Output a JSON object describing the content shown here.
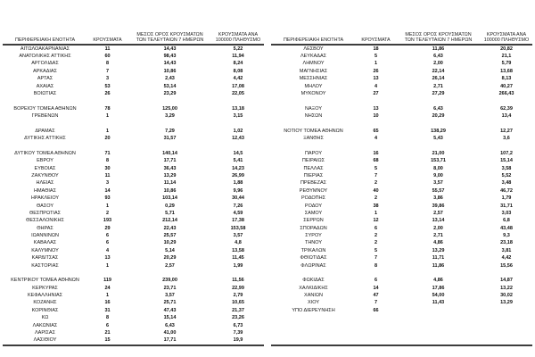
{
  "header": {
    "col_region": "ΠΕΡΙΦΕΡΕΙΑΚΗ ΕΝΟΤΗΤΑ",
    "col_cases": "ΚΡΟΥΣΜΑΤΑ",
    "col_avg7": "ΜΕΣΟΣ ΟΡΟΣ ΚΡΟΥΣΜΑΤΩΝ ΤΩΝ ΤΕΛΕΥΤΑΙΩΝ 7 ΗΜΕΡΩΝ",
    "col_per100k": "ΚΡΟΥΣΜΑΤΑ ΑΝΑ 100000 ΠΛΗΘΥΣΜΟ"
  },
  "left_table": {
    "rows": [
      {
        "region": "ΑΙΤΩΛΟΑΚΑΡΝΑΝΙΑΣ",
        "cases": "11",
        "avg7": "14,43",
        "per100k": "5,22"
      },
      {
        "region": "ΑΝΑΤΟΛΙΚΗΣ ΑΤΤΙΚΗΣ",
        "cases": "60",
        "avg7": "98,43",
        "per100k": "11,94"
      },
      {
        "region": "ΑΡΓΟΛΙΔΑΣ",
        "cases": "8",
        "avg7": "14,43",
        "per100k": "8,24"
      },
      {
        "region": "ΑΡΚΑΔΙΑΣ",
        "cases": "7",
        "avg7": "10,86",
        "per100k": "8,08"
      },
      {
        "region": "ΑΡΤΑΣ",
        "cases": "3",
        "avg7": "2,43",
        "per100k": "4,42"
      },
      {
        "region": "ΑΧΑΪΑΣ",
        "cases": "53",
        "avg7": "53,14",
        "per100k": "17,08"
      },
      {
        "region": "ΒΟΙΩΤΙΑΣ",
        "cases": "26",
        "avg7": "23,29",
        "per100k": "22,05"
      },
      null,
      {
        "region": "ΒΟΡΕΙΟΥ ΤΟΜΕΑ ΑΘΗΝΩΝ",
        "cases": "78",
        "avg7": "125,00",
        "per100k": "13,18"
      },
      {
        "region": "ΓΡΕΒΕΝΩΝ",
        "cases": "1",
        "avg7": "3,29",
        "per100k": "3,15"
      },
      null,
      {
        "region": "ΔΡΑΜΑΣ",
        "cases": "1",
        "avg7": "7,29",
        "per100k": "1,02"
      },
      {
        "region": "ΔΥΤΙΚΗΣ ΑΤΤΙΚΗΣ",
        "cases": "20",
        "avg7": "31,57",
        "per100k": "12,43"
      },
      null,
      {
        "region": "ΔΥΤΙΚΟΥ ΤΟΜΕΑ ΑΘΗΝΩΝ",
        "cases": "71",
        "avg7": "140,14",
        "per100k": "14,5"
      },
      {
        "region": "ΕΒΡΟΥ",
        "cases": "8",
        "avg7": "17,71",
        "per100k": "5,41"
      },
      {
        "region": "ΕΥΒΟΙΑΣ",
        "cases": "30",
        "avg7": "36,43",
        "per100k": "14,23"
      },
      {
        "region": "ΖΑΚΥΝΘΟΥ",
        "cases": "11",
        "avg7": "13,29",
        "per100k": "26,99"
      },
      {
        "region": "ΗΛΕΙΑΣ",
        "cases": "3",
        "avg7": "11,14",
        "per100k": "1,88"
      },
      {
        "region": "ΗΜΑΘΙΑΣ",
        "cases": "14",
        "avg7": "10,86",
        "per100k": "9,96"
      },
      {
        "region": "ΗΡΑΚΛΕΙΟΥ",
        "cases": "93",
        "avg7": "103,14",
        "per100k": "30,44"
      },
      {
        "region": "ΘΑΣΟΥ",
        "cases": "1",
        "avg7": "0,29",
        "per100k": "7,26"
      },
      {
        "region": "ΘΕΣΠΡΩΤΙΑΣ",
        "cases": "2",
        "avg7": "5,71",
        "per100k": "4,59"
      },
      {
        "region": "ΘΕΣΣΑΛΟΝΙΚΗΣ",
        "cases": "193",
        "avg7": "212,14",
        "per100k": "17,38"
      },
      {
        "region": "ΘΗΡΑΣ",
        "cases": "29",
        "avg7": "22,43",
        "per100k": "153,58"
      },
      {
        "region": "ΙΩΑΝΝΙΝΩΝ",
        "cases": "6",
        "avg7": "25,57",
        "per100k": "3,57"
      },
      {
        "region": "ΚΑΒΑΛΑΣ",
        "cases": "6",
        "avg7": "10,29",
        "per100k": "4,8"
      },
      {
        "region": "ΚΑΛΥΜΝΟΥ",
        "cases": "4",
        "avg7": "5,14",
        "per100k": "13,58"
      },
      {
        "region": "ΚΑΡΔΙΤΣΑΣ",
        "cases": "13",
        "avg7": "20,29",
        "per100k": "11,45"
      },
      {
        "region": "ΚΑΣΤΟΡΙΑΣ",
        "cases": "1",
        "avg7": "2,57",
        "per100k": "1,99"
      },
      null,
      {
        "region": "ΚΕΝΤΡΙΚΟΥ ΤΟΜΕΑ ΑΘΗΝΩΝ",
        "cases": "119",
        "avg7": "239,00",
        "per100k": "11,56"
      },
      {
        "region": "ΚΕΡΚΥΡΑΣ",
        "cases": "24",
        "avg7": "23,71",
        "per100k": "22,99"
      },
      {
        "region": "ΚΕΦΑΛΛΗΝΙΑΣ",
        "cases": "1",
        "avg7": "3,57",
        "per100k": "2,79"
      },
      {
        "region": "ΚΟΖΑΝΗΣ",
        "cases": "16",
        "avg7": "25,71",
        "per100k": "10,65"
      },
      {
        "region": "ΚΟΡΙΝΘΙΑΣ",
        "cases": "31",
        "avg7": "47,43",
        "per100k": "21,37"
      },
      {
        "region": "ΚΩ",
        "cases": "8",
        "avg7": "15,14",
        "per100k": "23,26"
      },
      {
        "region": "ΛΑΚΩΝΙΑΣ",
        "cases": "6",
        "avg7": "6,43",
        "per100k": "6,73"
      },
      {
        "region": "ΛΑΡΙΣΑΣ",
        "cases": "21",
        "avg7": "41,00",
        "per100k": "7,39"
      },
      {
        "region": "ΛΑΣΙΘΙΟΥ",
        "cases": "15",
        "avg7": "17,71",
        "per100k": "19,9"
      }
    ]
  },
  "right_table": {
    "rows": [
      {
        "region": "ΛΕΣΒΟΥ",
        "cases": "18",
        "avg7": "11,86",
        "per100k": "20,82"
      },
      {
        "region": "ΛΕΥΚΑΔΑΣ",
        "cases": "5",
        "avg7": "6,43",
        "per100k": "21,1"
      },
      {
        "region": "ΛΗΜΝΟΥ",
        "cases": "1",
        "avg7": "2,00",
        "per100k": "5,79"
      },
      {
        "region": "ΜΑΓΝΗΣΙΑΣ",
        "cases": "26",
        "avg7": "22,14",
        "per100k": "13,68"
      },
      {
        "region": "ΜΕΣΣΗΝΙΑΣ",
        "cases": "13",
        "avg7": "26,14",
        "per100k": "8,13"
      },
      {
        "region": "ΜΗΛΟΥ",
        "cases": "4",
        "avg7": "2,71",
        "per100k": "40,27"
      },
      {
        "region": "ΜΥΚΟΝΟΥ",
        "cases": "27",
        "avg7": "27,29",
        "per100k": "266,43"
      },
      null,
      {
        "region": "ΝΑΞΟΥ",
        "cases": "13",
        "avg7": "6,43",
        "per100k": "62,39"
      },
      {
        "region": "ΝΗΣΩΝ",
        "cases": "10",
        "avg7": "20,29",
        "per100k": "13,4"
      },
      null,
      {
        "region": "ΝΟΤΙΟΥ ΤΟΜΕΑ ΑΘΗΝΩΝ",
        "cases": "65",
        "avg7": "138,29",
        "per100k": "12,27"
      },
      {
        "region": "ΞΑΝΘΗΣ",
        "cases": "4",
        "avg7": "5,43",
        "per100k": "3,6"
      },
      null,
      {
        "region": "ΠΑΡΟΥ",
        "cases": "16",
        "avg7": "21,00",
        "per100k": "107,2"
      },
      {
        "region": "ΠΕΙΡΑΙΩΣ",
        "cases": "68",
        "avg7": "153,71",
        "per100k": "15,14"
      },
      {
        "region": "ΠΕΛΛΑΣ",
        "cases": "5",
        "avg7": "8,00",
        "per100k": "3,58"
      },
      {
        "region": "ΠΙΕΡΙΑΣ",
        "cases": "7",
        "avg7": "9,00",
        "per100k": "5,52"
      },
      {
        "region": "ΠΡΕΒΕΖΑΣ",
        "cases": "2",
        "avg7": "3,57",
        "per100k": "3,48"
      },
      {
        "region": "ΡΕΘΥΜΝΟΥ",
        "cases": "40",
        "avg7": "55,57",
        "per100k": "46,72"
      },
      {
        "region": "ΡΟΔΟΠΗΣ",
        "cases": "2",
        "avg7": "3,86",
        "per100k": "1,79"
      },
      {
        "region": "ΡΟΔΟΥ",
        "cases": "38",
        "avg7": "39,86",
        "per100k": "31,71"
      },
      {
        "region": "ΣΑΜΟΥ",
        "cases": "1",
        "avg7": "2,57",
        "per100k": "3,03"
      },
      {
        "region": "ΣΕΡΡΩΝ",
        "cases": "12",
        "avg7": "13,14",
        "per100k": "6,8"
      },
      {
        "region": "ΣΠΟΡΑΔΩΝ",
        "cases": "6",
        "avg7": "2,00",
        "per100k": "43,48"
      },
      {
        "region": "ΣΥΡΟΥ",
        "cases": "2",
        "avg7": "2,71",
        "per100k": "9,3"
      },
      {
        "region": "ΤΗΝΟΥ",
        "cases": "2",
        "avg7": "4,86",
        "per100k": "23,18"
      },
      {
        "region": "ΤΡΙΚΑΛΩΝ",
        "cases": "5",
        "avg7": "13,29",
        "per100k": "3,81"
      },
      {
        "region": "ΦΘΙΩΤΙΔΑΣ",
        "cases": "7",
        "avg7": "11,71",
        "per100k": "4,42"
      },
      {
        "region": "ΦΛΩΡΙΝΑΣ",
        "cases": "8",
        "avg7": "11,86",
        "per100k": "15,56"
      },
      null,
      {
        "region": "ΦΩΚΙΔΑΣ",
        "cases": "6",
        "avg7": "4,86",
        "per100k": "14,87"
      },
      {
        "region": "ΧΑΛΚΙΔΙΚΗΣ",
        "cases": "14",
        "avg7": "17,86",
        "per100k": "13,22"
      },
      {
        "region": "ΧΑΝΙΩΝ",
        "cases": "47",
        "avg7": "54,00",
        "per100k": "30,02"
      },
      {
        "region": "ΧΙΟΥ",
        "cases": "7",
        "avg7": "11,43",
        "per100k": "13,29"
      },
      {
        "region": "ΥΠΟ ΔΙΕΡΕΥΝΗΣΗ",
        "cases": "66",
        "avg7": "",
        "per100k": ""
      }
    ]
  }
}
